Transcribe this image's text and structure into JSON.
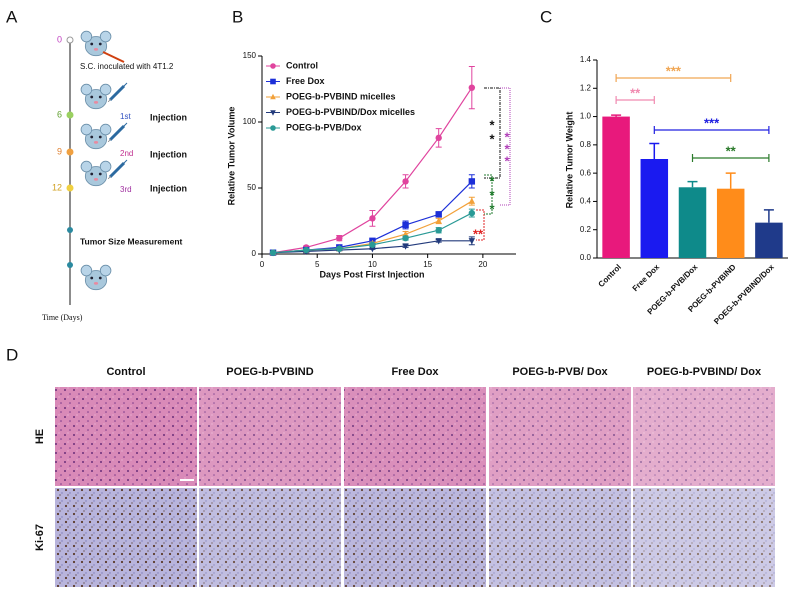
{
  "panel_labels": [
    "A",
    "B",
    "C",
    "D"
  ],
  "timeline": {
    "inoculation": {
      "day": "0",
      "label": "S.C. inoculated with 4T1.2"
    },
    "injections": [
      {
        "day": "6",
        "dose": "1st",
        "label": "Injection"
      },
      {
        "day": "9",
        "dose": "2nd",
        "label": "Injection"
      },
      {
        "day": "12",
        "dose": "3rd",
        "label": "Injection"
      }
    ],
    "measurement": "Tumor Size Measurement",
    "axis_label": "Time (Days)"
  },
  "chart_data": [
    {
      "type": "line",
      "x_label": "Days Post First Injection",
      "y_label": "Relative Tumor Volume",
      "x": [
        1,
        4,
        7,
        10,
        13,
        16,
        19
      ],
      "xlim": [
        0,
        23
      ],
      "xticks": [
        0,
        5,
        10,
        15,
        20
      ],
      "ylim": [
        0,
        150
      ],
      "yticks": [
        0,
        50,
        100,
        150
      ],
      "series": [
        {
          "name": "Control",
          "color": "#e0449e",
          "marker": "circle",
          "values": [
            1,
            5,
            12,
            27,
            55,
            88,
            126
          ],
          "errors": [
            0.5,
            1,
            2,
            6,
            5,
            7,
            16
          ]
        },
        {
          "name": "Free Dox",
          "color": "#1c2fd8",
          "marker": "square",
          "values": [
            1,
            3,
            5,
            10,
            22,
            30,
            55
          ],
          "errors": [
            0.5,
            0.5,
            1,
            1.5,
            3,
            2,
            5
          ]
        },
        {
          "name": "POEG-b-PVBIND micelles",
          "color": "#f2a13a",
          "marker": "triangle-up",
          "values": [
            1,
            3,
            4,
            8,
            15,
            25,
            40
          ],
          "errors": [
            0.5,
            0.5,
            1,
            1,
            2,
            2,
            3
          ]
        },
        {
          "name": "POEG-b-PVBIND/Dox micelles",
          "color": "#233b7c",
          "marker": "triangle-down",
          "values": [
            1,
            2,
            3,
            4,
            6,
            10,
            10
          ],
          "errors": [
            0.3,
            0.3,
            0.5,
            0.5,
            1,
            1,
            3
          ]
        },
        {
          "name": "POEG-b-PVB/Dox",
          "color": "#2a9a96",
          "marker": "circle",
          "values": [
            1,
            3,
            4,
            7,
            12,
            18,
            31
          ],
          "errors": [
            0.3,
            0.5,
            0.5,
            1,
            1.5,
            2,
            3
          ]
        }
      ],
      "annotations": [
        {
          "text": "**",
          "color": "#e02424"
        },
        {
          "text": "*",
          "color": "#1f7a2c"
        },
        {
          "text": "*",
          "color": "#1f7a2c"
        },
        {
          "text": "*",
          "color": "#1f7a2c"
        },
        {
          "text": "*",
          "color": "#111111"
        },
        {
          "text": "*",
          "color": "#111111"
        },
        {
          "text": "*",
          "color": "#b040b8"
        },
        {
          "text": "*",
          "color": "#b040b8"
        },
        {
          "text": "*",
          "color": "#b040b8"
        }
      ]
    },
    {
      "type": "bar",
      "y_label": "Relative Tumor Weight",
      "categories": [
        "Control",
        "Free Dox",
        "POEG-b-PVB/Dox",
        "POEG-b-PVBIND",
        "POEG-b-PVBIND/Dox"
      ],
      "values": [
        1.0,
        0.7,
        0.5,
        0.49,
        0.25
      ],
      "errors": [
        0.01,
        0.11,
        0.04,
        0.11,
        0.09
      ],
      "colors": [
        "#e8197c",
        "#1a1af0",
        "#0e8a8a",
        "#ff8c1a",
        "#1f3a8a"
      ],
      "ylim": [
        0,
        1.4
      ],
      "yticks": [
        {
          "value": 0,
          "label": "0.0"
        },
        0.2,
        0.4,
        0.6,
        0.8,
        {
          "value": 1,
          "label": "1.0"
        },
        1.2,
        1.4
      ],
      "significance": [
        {
          "from": 0,
          "to": 3,
          "text": "***",
          "color": "#f0a654"
        },
        {
          "from": 0,
          "to": 1,
          "text": "**",
          "color": "#f08ab0"
        },
        {
          "from": 1,
          "to": 4,
          "text": "***",
          "color": "#2020e0"
        },
        {
          "from": 2,
          "to": 4,
          "text": "**",
          "color": "#2a7a2a"
        }
      ]
    }
  ],
  "histology": {
    "columns": [
      "Control",
      "POEG-b-PVBIND",
      "Free Dox",
      "POEG-b-PVB/ Dox",
      "POEG-b-PVBIND/ Dox"
    ],
    "rows": [
      "HE",
      "Ki-67"
    ]
  }
}
